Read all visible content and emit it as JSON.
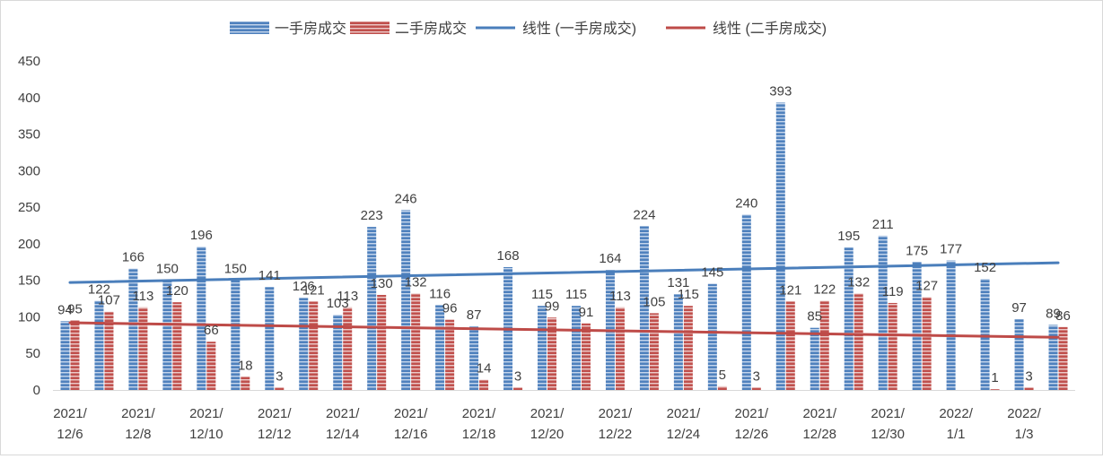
{
  "chart_data": {
    "type": "bar",
    "title": "",
    "xlabel": "",
    "ylabel": "",
    "ylim": [
      0,
      450
    ],
    "yticks": [
      0,
      50,
      100,
      150,
      200,
      250,
      300,
      350,
      400,
      450
    ],
    "grid": false,
    "legend_position": "top",
    "categories": [
      "2021/12/6",
      "2021/12/7",
      "2021/12/8",
      "2021/12/9",
      "2021/12/10",
      "2021/12/11",
      "2021/12/12",
      "2021/12/13",
      "2021/12/14",
      "2021/12/15",
      "2021/12/16",
      "2021/12/17",
      "2021/12/18",
      "2021/12/19",
      "2021/12/20",
      "2021/12/21",
      "2021/12/22",
      "2021/12/23",
      "2021/12/24",
      "2021/12/25",
      "2021/12/26",
      "2021/12/27",
      "2021/12/28",
      "2021/12/29",
      "2021/12/30",
      "2021/12/31",
      "2022/1/1",
      "2022/1/2",
      "2022/1/3",
      "2022/1/4"
    ],
    "tick_labels": [
      {
        "index": 0,
        "lines": [
          "2021/",
          "12/6"
        ]
      },
      {
        "index": 2,
        "lines": [
          "2021/",
          "12/8"
        ]
      },
      {
        "index": 4,
        "lines": [
          "2021/",
          "12/10"
        ]
      },
      {
        "index": 6,
        "lines": [
          "2021/",
          "12/12"
        ]
      },
      {
        "index": 8,
        "lines": [
          "2021/",
          "12/14"
        ]
      },
      {
        "index": 10,
        "lines": [
          "2021/",
          "12/16"
        ]
      },
      {
        "index": 12,
        "lines": [
          "2021/",
          "12/18"
        ]
      },
      {
        "index": 14,
        "lines": [
          "2021/",
          "12/20"
        ]
      },
      {
        "index": 16,
        "lines": [
          "2021/",
          "12/22"
        ]
      },
      {
        "index": 18,
        "lines": [
          "2021/",
          "12/24"
        ]
      },
      {
        "index": 20,
        "lines": [
          "2021/",
          "12/26"
        ]
      },
      {
        "index": 22,
        "lines": [
          "2021/",
          "12/28"
        ]
      },
      {
        "index": 24,
        "lines": [
          "2021/",
          "12/30"
        ]
      },
      {
        "index": 26,
        "lines": [
          "2022/",
          "1/1"
        ]
      },
      {
        "index": 28,
        "lines": [
          "2022/",
          "1/3"
        ]
      }
    ],
    "series": [
      {
        "name": "一手房成交",
        "color": "#4f81bd",
        "values": [
          94,
          122,
          166,
          150,
          196,
          150,
          141,
          126,
          103,
          223,
          246,
          116,
          87,
          168,
          115,
          115,
          164,
          224,
          131,
          145,
          240,
          393,
          85,
          195,
          211,
          175,
          177,
          152,
          97,
          89
        ],
        "labels": [
          "94",
          "122",
          "166",
          "150",
          "196",
          "150",
          "141",
          "126",
          "103",
          "223",
          "246",
          "116",
          "87",
          "168",
          "115",
          "115",
          "164",
          "224",
          "131",
          "145",
          "240",
          "393",
          "85",
          "195",
          "211",
          "175",
          "177",
          "152",
          "97",
          "89"
        ]
      },
      {
        "name": "二手房成交",
        "color": "#c0504d",
        "values": [
          95,
          107,
          113,
          120,
          66,
          18,
          3,
          121,
          113,
          130,
          132,
          96,
          14,
          3,
          99,
          91,
          113,
          105,
          115,
          5,
          3,
          121,
          122,
          132,
          119,
          127,
          0,
          1,
          3,
          86
        ],
        "labels": [
          "95",
          "107",
          "113",
          "120",
          "66",
          "18",
          "3",
          "121",
          "113",
          "130",
          "132",
          "96",
          "14",
          "3",
          "99",
          "91",
          "113",
          "105",
          "115",
          "5",
          "3",
          "121",
          "122",
          "132",
          "119",
          "127",
          "",
          "1",
          "3",
          "86"
        ]
      }
    ],
    "trendlines": [
      {
        "name": "线性 (一手房成交)",
        "color": "#4a7ebb",
        "start": 147,
        "end": 174
      },
      {
        "name": "线性 (二手房成交)",
        "color": "#be4b48",
        "start": 92,
        "end": 72
      }
    ]
  }
}
